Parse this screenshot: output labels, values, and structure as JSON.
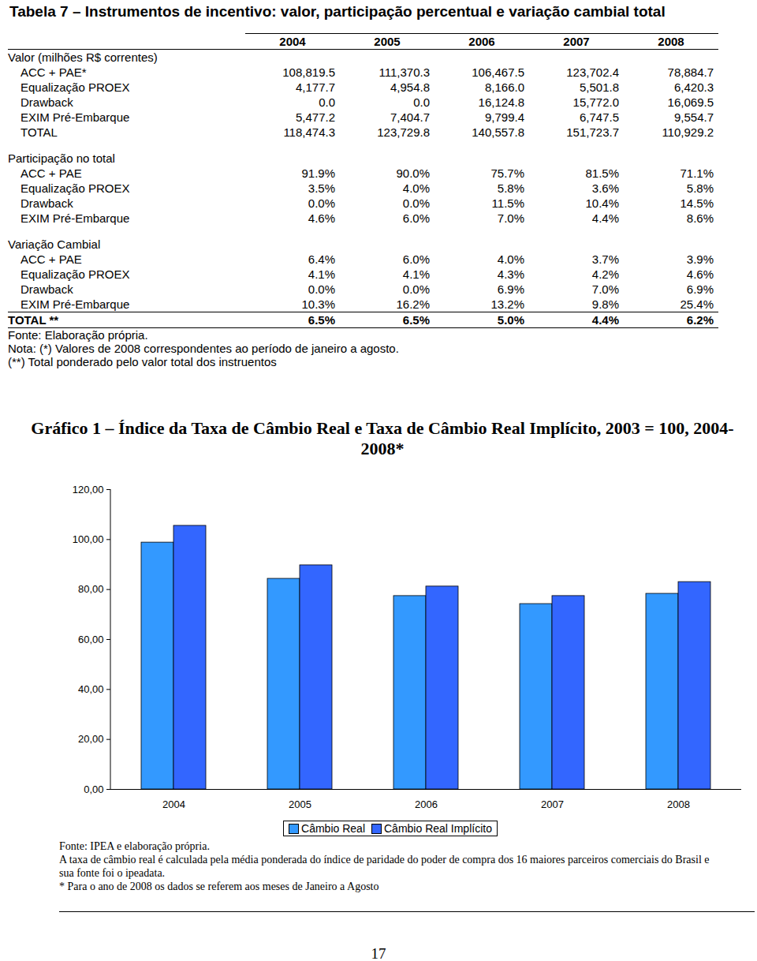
{
  "table": {
    "title": "Tabela 7 – Instrumentos de incentivo: valor, participação percentual e variação cambial total",
    "columns": [
      "2004",
      "2005",
      "2006",
      "2007",
      "2008"
    ],
    "sections": [
      {
        "heading": "Valor (milhões R$ correntes)",
        "rows": [
          {
            "label": "ACC + PAE*",
            "values": [
              "108,819.5",
              "111,370.3",
              "106,467.5",
              "123,702.4",
              "78,884.7"
            ]
          },
          {
            "label": "Equalização PROEX",
            "values": [
              "4,177.7",
              "4,954.8",
              "8,166.0",
              "5,501.8",
              "6,420.3"
            ]
          },
          {
            "label": "Drawback",
            "values": [
              "0.0",
              "0.0",
              "16,124.8",
              "15,772.0",
              "16,069.5"
            ]
          },
          {
            "label": "EXIM Pré-Embarque",
            "values": [
              "5,477.2",
              "7,404.7",
              "9,799.4",
              "6,747.5",
              "9,554.7"
            ]
          },
          {
            "label": "TOTAL",
            "values": [
              "118,474.3",
              "123,729.8",
              "140,557.8",
              "151,723.7",
              "110,929.2"
            ]
          }
        ]
      },
      {
        "heading": "Participação no total",
        "rows": [
          {
            "label": "ACC + PAE",
            "values": [
              "91.9%",
              "90.0%",
              "75.7%",
              "81.5%",
              "71.1%"
            ]
          },
          {
            "label": "Equalização PROEX",
            "values": [
              "3.5%",
              "4.0%",
              "5.8%",
              "3.6%",
              "5.8%"
            ]
          },
          {
            "label": "Drawback",
            "values": [
              "0.0%",
              "0.0%",
              "11.5%",
              "10.4%",
              "14.5%"
            ]
          },
          {
            "label": "EXIM Pré-Embarque",
            "values": [
              "4.6%",
              "6.0%",
              "7.0%",
              "4.4%",
              "8.6%"
            ]
          }
        ]
      },
      {
        "heading": "Variação Cambial",
        "rows": [
          {
            "label": "ACC + PAE",
            "values": [
              "6.4%",
              "6.0%",
              "4.0%",
              "3.7%",
              "3.9%"
            ]
          },
          {
            "label": "Equalização PROEX",
            "values": [
              "4.1%",
              "4.1%",
              "4.3%",
              "4.2%",
              "4.6%"
            ]
          },
          {
            "label": "Drawback",
            "values": [
              "0.0%",
              "0.0%",
              "6.9%",
              "7.0%",
              "6.9%"
            ]
          },
          {
            "label": "EXIM Pré-Embarque",
            "values": [
              "10.3%",
              "16.2%",
              "13.2%",
              "9.8%",
              "25.4%"
            ]
          }
        ]
      }
    ],
    "total": {
      "label": "TOTAL **",
      "values": [
        "6.5%",
        "6.5%",
        "5.0%",
        "4.4%",
        "6.2%"
      ]
    },
    "notes": [
      "Fonte: Elaboração própria.",
      "Nota: (*) Valores de 2008 correspondentes ao período de janeiro a agosto.",
      "(**) Total ponderado pelo valor total dos instruentos"
    ]
  },
  "chart_data": {
    "type": "bar",
    "title": "Gráfico 1 – Índice da Taxa de Câmbio Real e Taxa de Câmbio Real Implícito, 2003 = 100, 2004-2008*",
    "categories": [
      "2004",
      "2005",
      "2006",
      "2007",
      "2008"
    ],
    "series": [
      {
        "name": "Câmbio Real",
        "color": "#3399ff",
        "values": [
          98.8,
          84.3,
          77.4,
          74.2,
          78.3
        ]
      },
      {
        "name": "Câmbio Real Implícito",
        "color": "#3366ff",
        "values": [
          105.5,
          89.7,
          81.2,
          77.4,
          83.0
        ]
      }
    ],
    "ylim": [
      0,
      120
    ],
    "yticks": [
      {
        "value": 0,
        "label": "0,00"
      },
      {
        "value": 20,
        "label": "20,00"
      },
      {
        "value": 40,
        "label": "40,00"
      },
      {
        "value": 60,
        "label": "60,00"
      },
      {
        "value": 80,
        "label": "80,00"
      },
      {
        "value": 100,
        "label": "100,00"
      },
      {
        "value": 120,
        "label": "120,00"
      }
    ],
    "grid": false,
    "legend": "bottom"
  },
  "chart_notes": [
    "Fonte: IPEA e elaboração própria.",
    "A taxa de câmbio real é calculada pela média ponderada do índice de paridade do poder de compra dos 16 maiores parceiros comerciais do Brasil e sua fonte foi o ipeadata.",
    "* Para o ano de 2008 os dados se referem aos meses de Janeiro a Agosto"
  ],
  "page_number": "17"
}
